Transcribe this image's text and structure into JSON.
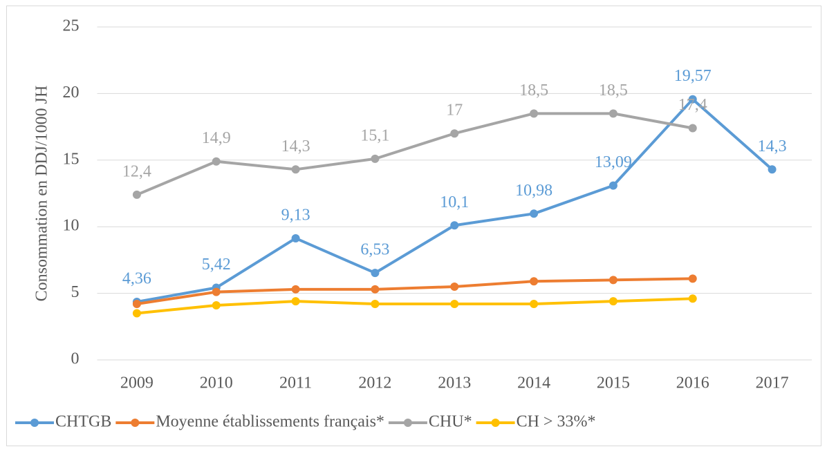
{
  "chart_data": {
    "type": "line",
    "y_label": "Consommation en DDJ/1000 JH",
    "categories": [
      "2009",
      "2010",
      "2011",
      "2012",
      "2013",
      "2014",
      "2015",
      "2016",
      "2017"
    ],
    "series": [
      {
        "name": "CHTGB",
        "color": "#5b9bd5",
        "values": [
          4.36,
          5.42,
          9.13,
          6.53,
          10.1,
          10.98,
          13.09,
          19.57,
          14.3
        ],
        "value_labels": [
          "4,36",
          "5,42",
          "9,13",
          "6,53",
          "10,1",
          "10,98",
          "13,09",
          "19,57",
          "14,3"
        ]
      },
      {
        "name": "Moyenne établissements français*",
        "color": "#ed7d31",
        "values": [
          4.2,
          5.1,
          5.3,
          5.3,
          5.5,
          5.9,
          6.0,
          6.1,
          null
        ]
      },
      {
        "name": "CHU*",
        "color": "#a5a5a5",
        "values": [
          12.4,
          14.9,
          14.3,
          15.1,
          17,
          18.5,
          18.5,
          17.4,
          null
        ],
        "value_labels": [
          "12,4",
          "14,9",
          "14,3",
          "15,1",
          "17",
          "18,5",
          "18,5",
          "17,4",
          null
        ]
      },
      {
        "name": "CH > 33%*",
        "color": "#ffc000",
        "values": [
          3.5,
          4.1,
          4.4,
          4.2,
          4.2,
          4.2,
          4.4,
          4.6,
          null
        ]
      }
    ],
    "ylim": [
      0,
      25
    ],
    "yticks": [
      0,
      5,
      10,
      15,
      20,
      25
    ],
    "grid": true,
    "legend": "bottom"
  }
}
